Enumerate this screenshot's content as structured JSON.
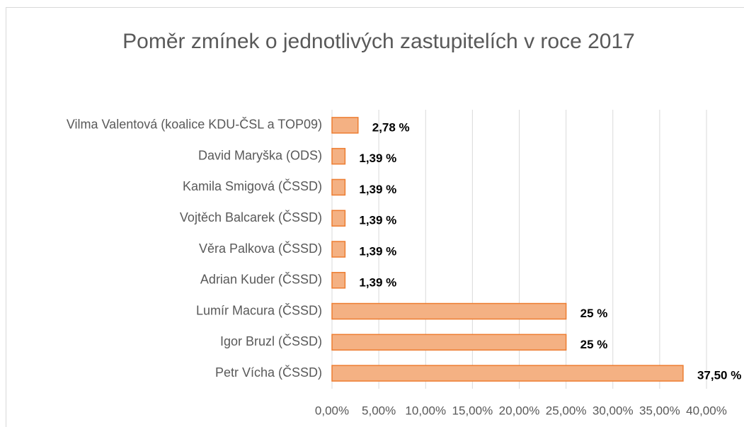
{
  "chart_data": {
    "type": "bar",
    "orientation": "horizontal",
    "title": "Poměr zmínek o jednotlivých zastupitelích v roce 2017",
    "categories": [
      "Vilma Valentová (koalice KDU-ČSL a TOP09)",
      "David Maryška (ODS)",
      "Kamila Smigová (ČSSD)",
      "Vojtěch Balcarek (ČSSD)",
      "Věra Palkova (ČSSD)",
      "Adrian Kuder (ČSSD)",
      "Lumír Macura (ČSSD)",
      "Igor Bruzl (ČSSD)",
      "Petr Vícha (ČSSD)"
    ],
    "values": [
      2.78,
      1.39,
      1.39,
      1.39,
      1.39,
      1.39,
      25,
      25,
      37.5
    ],
    "value_labels": [
      "2,78 %",
      "1,39 %",
      "1,39 %",
      "1,39 %",
      "1,39 %",
      "1,39 %",
      "25 %",
      "25 %",
      "37,50 %"
    ],
    "color": "#f4b183",
    "edge_color": "#ed7d31",
    "xlim": [
      0,
      40
    ],
    "xticks": [
      {
        "value": 0,
        "label": "0,00%"
      },
      {
        "value": 5,
        "label": "5,00%"
      },
      {
        "value": 10,
        "label": "10,00%"
      },
      {
        "value": 15,
        "label": "15,00%"
      },
      {
        "value": 20,
        "label": "20,00%"
      },
      {
        "value": 25,
        "label": "25,00%"
      },
      {
        "value": 30,
        "label": "30,00%"
      },
      {
        "value": 35,
        "label": "35,00%"
      },
      {
        "value": 40,
        "label": "40,00%"
      }
    ],
    "grid": true
  }
}
